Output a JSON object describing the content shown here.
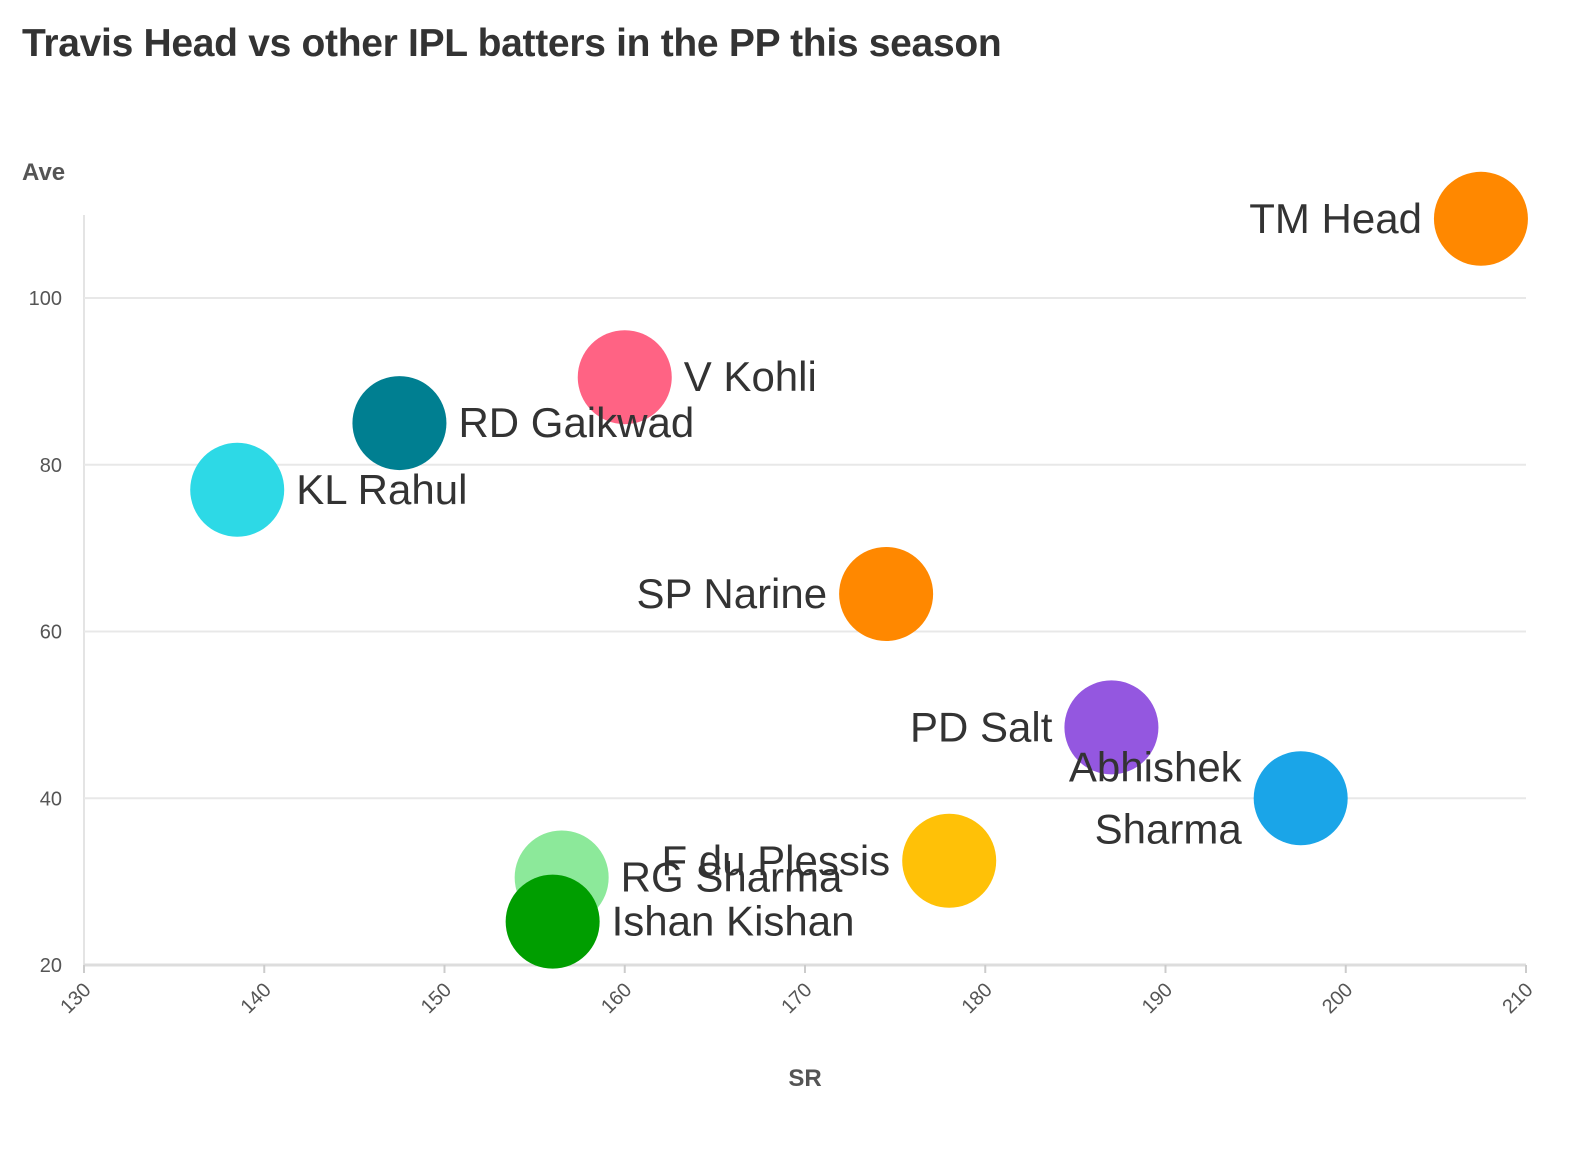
{
  "chart_data": {
    "type": "scatter",
    "title": "Travis Head vs other IPL batters in the PP this season",
    "xlabel": "SR",
    "ylabel": "Ave",
    "xlim": [
      130,
      210
    ],
    "ylim": [
      20,
      110
    ],
    "xticks": [
      130,
      140,
      150,
      160,
      170,
      180,
      190,
      200,
      210
    ],
    "yticks": [
      20,
      40,
      60,
      80,
      100
    ],
    "grid": "horizontal",
    "points": [
      {
        "label": "RG Sharma",
        "x": 156.5,
        "y": 30.5,
        "color": "#8ce99a",
        "label_side": "right",
        "label_lines": [
          "RG Sharma"
        ]
      },
      {
        "label": "F du Plessis",
        "x": 178.0,
        "y": 32.5,
        "color": "#ffc107",
        "label_side": "left",
        "label_lines": [
          "F du Plessis"
        ]
      },
      {
        "label": "KL Rahul",
        "x": 138.5,
        "y": 77.0,
        "color": "#2dd9e6",
        "label_side": "right",
        "label_lines": [
          "KL Rahul"
        ]
      },
      {
        "label": "V Kohli",
        "x": 160.0,
        "y": 90.5,
        "color": "#ff6384",
        "label_side": "right",
        "label_lines": [
          "V Kohli"
        ]
      },
      {
        "label": "RD Gaikwad",
        "x": 147.5,
        "y": 85.0,
        "color": "#007f91",
        "label_side": "right",
        "label_lines": [
          "RD Gaikwad"
        ]
      },
      {
        "label": "SP Narine",
        "x": 174.5,
        "y": 64.5,
        "color": "#ff8800",
        "label_side": "left",
        "label_lines": [
          "SP Narine"
        ]
      },
      {
        "label": "PD Salt",
        "x": 187.0,
        "y": 48.5,
        "color": "#9457e0",
        "label_side": "left",
        "label_lines": [
          "PD Salt"
        ]
      },
      {
        "label": "Abhishek Sharma",
        "x": 197.5,
        "y": 40.0,
        "color": "#1aa5e8",
        "label_side": "left",
        "label_lines": [
          "Abhishek",
          "Sharma"
        ]
      },
      {
        "label": "TM Head",
        "x": 207.5,
        "y": 109.5,
        "color": "#ff8800",
        "label_side": "left",
        "label_lines": [
          "TM Head"
        ]
      },
      {
        "label": "Ishan Kishan",
        "x": 156.0,
        "y": 25.2,
        "color": "#009e00",
        "label_side": "right",
        "label_lines": [
          "Ishan Kishan"
        ]
      }
    ]
  }
}
